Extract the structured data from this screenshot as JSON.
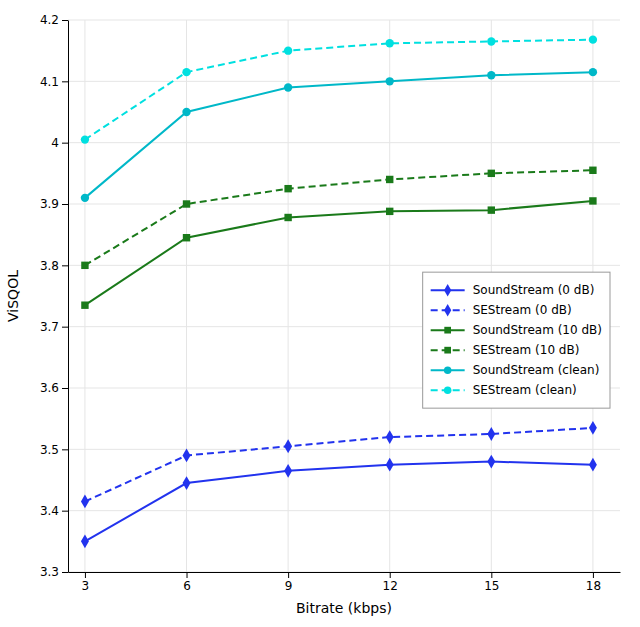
{
  "chart_data": {
    "type": "line",
    "x": [
      3,
      6,
      9,
      12,
      15,
      18
    ],
    "xlabel": "Bitrate (kbps)",
    "ylabel": "ViSQOL",
    "xlim": [
      2.5,
      18.8
    ],
    "xticks": [
      3,
      6,
      9,
      12,
      15,
      18
    ],
    "ylim": [
      3.3,
      4.2
    ],
    "yticks": [
      3.3,
      3.4,
      3.5,
      3.6,
      3.7,
      3.8,
      3.9,
      4.0,
      4.1,
      4.2
    ],
    "grid": true,
    "legend": "right",
    "series": [
      {
        "name": "SoundStream (0 dB)",
        "color": "#2233ee",
        "line_style": "solid",
        "marker": "diamond",
        "values": [
          3.35,
          3.445,
          3.465,
          3.475,
          3.48,
          3.475
        ]
      },
      {
        "name": "SEStream (0 dB)",
        "color": "#2233ee",
        "line_style": "dashed",
        "marker": "diamond",
        "values": [
          3.415,
          3.49,
          3.505,
          3.52,
          3.525,
          3.535
        ]
      },
      {
        "name": "SoundStream (10 dB)",
        "color": "#1a7a1a",
        "line_style": "solid",
        "marker": "square",
        "values": [
          3.735,
          3.845,
          3.878,
          3.888,
          3.89,
          3.905
        ]
      },
      {
        "name": "SEStream (10 dB)",
        "color": "#1a7a1a",
        "line_style": "dashed",
        "marker": "square",
        "values": [
          3.8,
          3.9,
          3.925,
          3.94,
          3.95,
          3.955
        ]
      },
      {
        "name": "SoundStream (clean)",
        "color": "#00b8c8",
        "line_style": "solid",
        "marker": "circle",
        "values": [
          3.91,
          4.05,
          4.09,
          4.1,
          4.11,
          4.115
        ]
      },
      {
        "name": "SEStream (clean)",
        "color": "#00e0e0",
        "line_style": "dashed",
        "marker": "circle",
        "values": [
          4.005,
          4.115,
          4.15,
          4.162,
          4.165,
          4.168
        ]
      }
    ]
  }
}
